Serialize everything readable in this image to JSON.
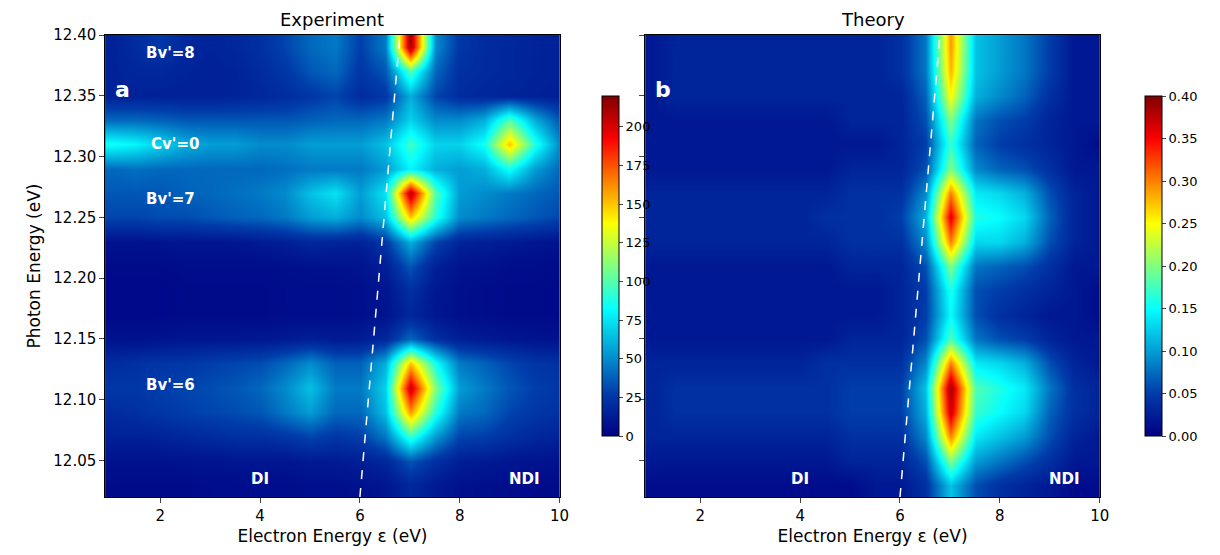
{
  "chart_data": [
    {
      "type": "heatmap",
      "title": "Experiment",
      "xlabel": "Electron Energy ε (eV)",
      "ylabel": "Photon Energy (eV)",
      "x": [
        1,
        1.5,
        2,
        2.5,
        3,
        3.5,
        4,
        4.5,
        5,
        5.5,
        6,
        6.5,
        7,
        7.5,
        8,
        8.5,
        9,
        9.5,
        10
      ],
      "y": [
        12.03,
        12.05,
        12.07,
        12.09,
        12.11,
        12.13,
        12.15,
        12.17,
        12.19,
        12.21,
        12.23,
        12.25,
        12.27,
        12.29,
        12.31,
        12.33,
        12.35,
        12.37,
        12.39
      ],
      "z": [
        [
          5,
          5,
          5,
          5,
          6,
          6,
          6,
          6,
          7,
          7,
          8,
          10,
          18,
          12,
          8,
          7,
          6,
          5,
          5
        ],
        [
          8,
          8,
          8,
          9,
          9,
          10,
          10,
          10,
          12,
          12,
          14,
          18,
          35,
          22,
          14,
          12,
          10,
          9,
          8
        ],
        [
          15,
          15,
          16,
          18,
          20,
          22,
          22,
          25,
          30,
          25,
          28,
          45,
          95,
          55,
          30,
          28,
          22,
          18,
          16
        ],
        [
          20,
          22,
          25,
          28,
          30,
          32,
          35,
          45,
          55,
          40,
          40,
          65,
          160,
          90,
          45,
          40,
          30,
          25,
          22
        ],
        [
          25,
          25,
          28,
          30,
          32,
          35,
          40,
          50,
          65,
          45,
          45,
          70,
          205,
          110,
          55,
          45,
          35,
          28,
          25
        ],
        [
          20,
          22,
          24,
          25,
          28,
          30,
          32,
          40,
          50,
          38,
          38,
          60,
          150,
          85,
          45,
          38,
          30,
          24,
          22
        ],
        [
          8,
          8,
          9,
          10,
          10,
          10,
          11,
          12,
          14,
          12,
          13,
          18,
          40,
          22,
          14,
          12,
          10,
          9,
          8
        ],
        [
          4,
          4,
          4,
          5,
          5,
          5,
          5,
          6,
          6,
          6,
          7,
          9,
          18,
          10,
          7,
          6,
          5,
          5,
          4
        ],
        [
          4,
          4,
          4,
          5,
          5,
          5,
          5,
          6,
          6,
          6,
          7,
          10,
          22,
          11,
          7,
          6,
          5,
          5,
          4
        ],
        [
          5,
          5,
          5,
          6,
          6,
          6,
          6,
          7,
          8,
          8,
          9,
          14,
          35,
          15,
          9,
          8,
          6,
          6,
          5
        ],
        [
          8,
          8,
          9,
          10,
          10,
          10,
          12,
          14,
          18,
          16,
          15,
          25,
          60,
          30,
          16,
          14,
          12,
          10,
          8
        ],
        [
          30,
          30,
          32,
          32,
          35,
          38,
          40,
          45,
          55,
          60,
          50,
          65,
          150,
          90,
          50,
          45,
          40,
          35,
          30
        ],
        [
          35,
          35,
          35,
          38,
          40,
          42,
          45,
          50,
          65,
          75,
          55,
          75,
          210,
          100,
          55,
          50,
          45,
          40,
          35
        ],
        [
          40,
          42,
          40,
          40,
          40,
          40,
          40,
          42,
          45,
          45,
          45,
          55,
          80,
          60,
          55,
          60,
          85,
          55,
          40
        ],
        [
          85,
          80,
          70,
          60,
          55,
          55,
          50,
          50,
          55,
          55,
          55,
          65,
          95,
          70,
          70,
          85,
          150,
          90,
          50
        ],
        [
          40,
          40,
          38,
          35,
          35,
          35,
          35,
          35,
          38,
          40,
          40,
          45,
          70,
          50,
          50,
          60,
          100,
          60,
          35
        ],
        [
          15,
          15,
          15,
          15,
          15,
          16,
          18,
          20,
          25,
          30,
          20,
          25,
          60,
          30,
          20,
          18,
          16,
          15,
          14
        ],
        [
          15,
          18,
          18,
          16,
          15,
          16,
          20,
          25,
          35,
          40,
          25,
          35,
          100,
          40,
          22,
          20,
          18,
          16,
          15
        ],
        [
          15,
          20,
          25,
          18,
          16,
          18,
          22,
          30,
          40,
          45,
          28,
          45,
          215,
          50,
          25,
          20,
          18,
          16,
          15
        ]
      ],
      "xlim": [
        0.9,
        10
      ],
      "xticks": [
        2,
        4,
        6,
        8,
        10
      ],
      "ylim": [
        12.02,
        12.4
      ],
      "yticks": [
        12.05,
        {
          "value": 12.1,
          "label": "12.10"
        },
        12.15,
        {
          "value": 12.2,
          "label": "12.20"
        },
        12.25,
        {
          "value": 12.3,
          "label": "12.30"
        },
        12.35,
        {
          "value": 12.4,
          "label": "12.40"
        }
      ],
      "colorbar_range": [
        0,
        220
      ],
      "colorbar_ticks": [
        0,
        25,
        50,
        75,
        100,
        125,
        150,
        175,
        200
      ],
      "boundary_line": {
        "x": [
          6,
          6.8
        ],
        "y": [
          12.02,
          12.4
        ],
        "line_style": "dashed"
      },
      "panel_label": {
        "text": "a",
        "x": 1.25,
        "y": 12.355
      },
      "annotations": [
        {
          "text": "Bv'=8",
          "x": 2.2,
          "y": 12.385
        },
        {
          "text": "Cv'=0",
          "x": 2.3,
          "y": 12.31
        },
        {
          "text": "Bv'=7",
          "x": 2.2,
          "y": 12.265
        },
        {
          "text": "Bv'=6",
          "x": 2.2,
          "y": 12.112
        },
        {
          "text": "DI",
          "x": 4,
          "y": 12.035
        },
        {
          "text": "NDI",
          "x": 9.3,
          "y": 12.035
        }
      ]
    },
    {
      "type": "heatmap",
      "title": "Theory",
      "xlabel": "Electron Energy ε (eV)",
      "tick_labels": "x",
      "x": [
        1,
        1.5,
        2,
        2.5,
        3,
        3.5,
        4,
        4.5,
        5,
        5.5,
        6,
        6.5,
        7,
        7.5,
        8,
        8.5,
        9,
        9.5,
        10
      ],
      "y": [
        12.03,
        12.05,
        12.07,
        12.09,
        12.11,
        12.13,
        12.15,
        12.17,
        12.19,
        12.21,
        12.23,
        12.25,
        12.27,
        12.29,
        12.31,
        12.33,
        12.35,
        12.37,
        12.39
      ],
      "z": [
        [
          0.01,
          0.01,
          0.01,
          0.01,
          0.01,
          0.01,
          0.01,
          0.01,
          0.01,
          0.02,
          0.02,
          0.04,
          0.12,
          0.06,
          0.04,
          0.03,
          0.02,
          0.01,
          0.01
        ],
        [
          0.02,
          0.02,
          0.02,
          0.02,
          0.02,
          0.02,
          0.02,
          0.02,
          0.03,
          0.03,
          0.03,
          0.06,
          0.2,
          0.1,
          0.08,
          0.06,
          0.04,
          0.02,
          0.02
        ],
        [
          0.03,
          0.03,
          0.03,
          0.03,
          0.03,
          0.03,
          0.03,
          0.03,
          0.04,
          0.04,
          0.04,
          0.09,
          0.3,
          0.14,
          0.12,
          0.1,
          0.06,
          0.03,
          0.02
        ],
        [
          0.03,
          0.04,
          0.04,
          0.04,
          0.04,
          0.04,
          0.04,
          0.04,
          0.05,
          0.05,
          0.05,
          0.11,
          0.37,
          0.17,
          0.15,
          0.13,
          0.07,
          0.04,
          0.03
        ],
        [
          0.03,
          0.04,
          0.04,
          0.04,
          0.04,
          0.04,
          0.04,
          0.04,
          0.05,
          0.05,
          0.05,
          0.12,
          0.39,
          0.18,
          0.16,
          0.14,
          0.08,
          0.04,
          0.03
        ],
        [
          0.03,
          0.03,
          0.03,
          0.03,
          0.03,
          0.03,
          0.03,
          0.04,
          0.04,
          0.04,
          0.04,
          0.09,
          0.3,
          0.14,
          0.13,
          0.11,
          0.06,
          0.03,
          0.02
        ],
        [
          0.02,
          0.02,
          0.02,
          0.02,
          0.02,
          0.02,
          0.02,
          0.02,
          0.03,
          0.03,
          0.03,
          0.06,
          0.18,
          0.08,
          0.06,
          0.05,
          0.03,
          0.02,
          0.02
        ],
        [
          0.02,
          0.02,
          0.02,
          0.02,
          0.02,
          0.02,
          0.02,
          0.02,
          0.02,
          0.02,
          0.03,
          0.05,
          0.15,
          0.06,
          0.04,
          0.03,
          0.02,
          0.02,
          0.01
        ],
        [
          0.02,
          0.02,
          0.02,
          0.02,
          0.02,
          0.02,
          0.02,
          0.02,
          0.02,
          0.02,
          0.03,
          0.05,
          0.16,
          0.06,
          0.05,
          0.04,
          0.03,
          0.02,
          0.01
        ],
        [
          0.02,
          0.02,
          0.02,
          0.02,
          0.02,
          0.02,
          0.02,
          0.02,
          0.03,
          0.03,
          0.03,
          0.06,
          0.2,
          0.08,
          0.07,
          0.06,
          0.04,
          0.02,
          0.02
        ],
        [
          0.03,
          0.03,
          0.03,
          0.03,
          0.03,
          0.03,
          0.03,
          0.03,
          0.04,
          0.04,
          0.04,
          0.09,
          0.3,
          0.13,
          0.13,
          0.11,
          0.06,
          0.03,
          0.02
        ],
        [
          0.03,
          0.03,
          0.03,
          0.03,
          0.03,
          0.03,
          0.03,
          0.04,
          0.04,
          0.04,
          0.05,
          0.11,
          0.36,
          0.16,
          0.15,
          0.13,
          0.07,
          0.03,
          0.02
        ],
        [
          0.03,
          0.03,
          0.03,
          0.03,
          0.03,
          0.03,
          0.03,
          0.03,
          0.04,
          0.04,
          0.04,
          0.09,
          0.3,
          0.14,
          0.13,
          0.11,
          0.06,
          0.03,
          0.02
        ],
        [
          0.02,
          0.02,
          0.02,
          0.02,
          0.02,
          0.02,
          0.02,
          0.02,
          0.03,
          0.03,
          0.03,
          0.06,
          0.2,
          0.09,
          0.07,
          0.06,
          0.04,
          0.02,
          0.02
        ],
        [
          0.02,
          0.02,
          0.02,
          0.02,
          0.02,
          0.02,
          0.02,
          0.02,
          0.02,
          0.02,
          0.03,
          0.05,
          0.17,
          0.07,
          0.05,
          0.04,
          0.03,
          0.02,
          0.01
        ],
        [
          0.02,
          0.02,
          0.02,
          0.02,
          0.02,
          0.02,
          0.02,
          0.02,
          0.03,
          0.03,
          0.03,
          0.06,
          0.2,
          0.08,
          0.06,
          0.05,
          0.03,
          0.02,
          0.02
        ],
        [
          0.02,
          0.03,
          0.03,
          0.03,
          0.03,
          0.03,
          0.03,
          0.03,
          0.03,
          0.03,
          0.03,
          0.07,
          0.25,
          0.11,
          0.09,
          0.07,
          0.04,
          0.02,
          0.02
        ],
        [
          0.02,
          0.03,
          0.03,
          0.03,
          0.03,
          0.03,
          0.03,
          0.03,
          0.03,
          0.03,
          0.04,
          0.08,
          0.28,
          0.12,
          0.1,
          0.08,
          0.05,
          0.02,
          0.02
        ],
        [
          0.02,
          0.03,
          0.03,
          0.03,
          0.03,
          0.03,
          0.03,
          0.03,
          0.03,
          0.03,
          0.04,
          0.08,
          0.29,
          0.12,
          0.1,
          0.08,
          0.05,
          0.02,
          0.02
        ]
      ],
      "xlim": [
        0.9,
        10
      ],
      "xticks": [
        2,
        4,
        6,
        8,
        10
      ],
      "ylim": [
        12.02,
        12.4
      ],
      "yticks": [
        12.05,
        {
          "value": 12.1,
          "label": "12.10"
        },
        12.15,
        {
          "value": 12.2,
          "label": "12.20"
        },
        12.25,
        {
          "value": 12.3,
          "label": "12.30"
        },
        12.35,
        {
          "value": 12.4,
          "label": "12.40"
        }
      ],
      "colorbar_range": [
        0,
        0.4
      ],
      "colorbar_ticks": [
        {
          "value": 0,
          "label": "0.00"
        },
        0.05,
        {
          "value": 0.1,
          "label": "0.10"
        },
        0.15,
        {
          "value": 0.2,
          "label": "0.20"
        },
        0.25,
        {
          "value": 0.3,
          "label": "0.30"
        },
        0.35,
        {
          "value": 0.4,
          "label": "0.40"
        }
      ],
      "boundary_line": {
        "x": [
          6,
          6.8
        ],
        "y": [
          12.02,
          12.4
        ],
        "line_style": "dashed"
      },
      "panel_label": {
        "text": "b",
        "x": 1.25,
        "y": 12.355
      },
      "annotations": [
        {
          "text": "DI",
          "x": 4,
          "y": 12.035
        },
        {
          "text": "NDI",
          "x": 9.3,
          "y": 12.035
        }
      ]
    }
  ]
}
